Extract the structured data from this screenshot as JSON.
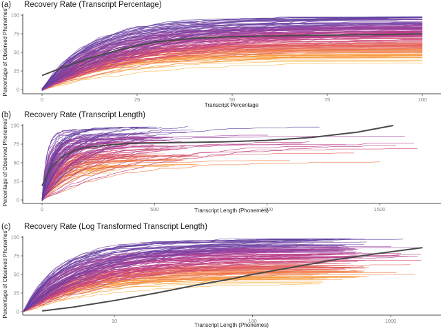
{
  "chart_data": [
    {
      "id": "a",
      "type": "line",
      "tag": "(a)",
      "title": "Recovery Rate (Transcript Percentage)",
      "xlabel": "Transcript Percentage",
      "ylabel": "Percentage of Observed Phonemes",
      "xscale": "linear",
      "xlim": [
        -5,
        105
      ],
      "ylim": [
        0,
        100
      ],
      "xticks": [
        0,
        25,
        50,
        75,
        100
      ],
      "xtick_labels": [
        "0",
        "25",
        "50",
        "75",
        "100"
      ],
      "yticks": [
        0,
        25,
        50,
        75,
        100
      ],
      "ytick_labels": [
        "0",
        "25",
        "50",
        "75",
        "100"
      ],
      "grid": false,
      "series_count_approx": 150,
      "series_description": "Individual transcript recovery curves, colored by final recovery (purple = high, orange = low)",
      "final_value_range": [
        35,
        100
      ],
      "trend": {
        "name": "smoothed mean",
        "x": [
          0,
          5,
          10,
          15,
          20,
          25,
          30,
          40,
          50,
          60,
          70,
          80,
          90,
          100
        ],
        "y": [
          19,
          29,
          38,
          46,
          53,
          59,
          64,
          69,
          71,
          72,
          73,
          73.5,
          74,
          75
        ]
      }
    },
    {
      "id": "b",
      "type": "line",
      "tag": "(b)",
      "title": "Recovery Rate (Transcript Length)",
      "xlabel": "Transcript Length (Phonemes)",
      "ylabel": "Percentage of Observed Phonemes",
      "xscale": "linear",
      "xlim": [
        -90,
        1780
      ],
      "ylim": [
        0,
        100
      ],
      "xticks": [
        0,
        500,
        1000,
        1500
      ],
      "xtick_labels": [
        "0",
        "500",
        "1000",
        "1500"
      ],
      "yticks": [
        0,
        25,
        50,
        75,
        100
      ],
      "ytick_labels": [
        "0",
        "25",
        "50",
        "75",
        "100"
      ],
      "grid": false,
      "series_count_approx": 150,
      "series_description": "Individual transcript recovery curves over phoneme count; most end before 700 phonemes, a few extend to ~1700",
      "final_value_range": [
        35,
        100
      ],
      "trend": {
        "name": "smoothed mean",
        "x": [
          0,
          25,
          50,
          100,
          150,
          200,
          300,
          400,
          600,
          800,
          1000,
          1200,
          1400,
          1560
        ],
        "y": [
          19,
          35,
          47,
          60,
          67,
          71,
          74,
          76,
          77,
          78,
          80,
          84,
          91,
          100
        ]
      }
    },
    {
      "id": "c",
      "type": "line",
      "tag": "(c)",
      "title": "Recovery Rate (Log Transformed Transcript Length)",
      "xlabel": "Transcript Length (Phonemes)",
      "ylabel": "Percentage of Observed Phonemes",
      "xscale": "log10",
      "xlim": [
        2.2,
        3100
      ],
      "ylim": [
        0,
        100
      ],
      "xticks": [
        10,
        100,
        1000
      ],
      "xtick_labels": [
        "10",
        "100",
        "1000"
      ],
      "yticks": [
        0,
        25,
        50,
        75,
        100
      ],
      "ytick_labels": [
        "0",
        "25",
        "50",
        "75",
        "100"
      ],
      "grid": false,
      "series_count_approx": 150,
      "series_description": "Same recovery curves on log-scaled phoneme axis",
      "final_value_range": [
        35,
        100
      ],
      "trend": {
        "name": "smoothed mean",
        "x": [
          3,
          5,
          10,
          20,
          40,
          70,
          100,
          200,
          400,
          800,
          1700
        ],
        "y": [
          1,
          6,
          15,
          25,
          36,
          44,
          50,
          60,
          70,
          78,
          86
        ]
      }
    }
  ],
  "palette": [
    "#5c3c9e",
    "#7b4aa8",
    "#9a3f9c",
    "#b83d8a",
    "#d14d74",
    "#e4655d",
    "#f07e4a",
    "#f89a3c",
    "#f7b84f"
  ],
  "trend_color": "#4a4a4a"
}
